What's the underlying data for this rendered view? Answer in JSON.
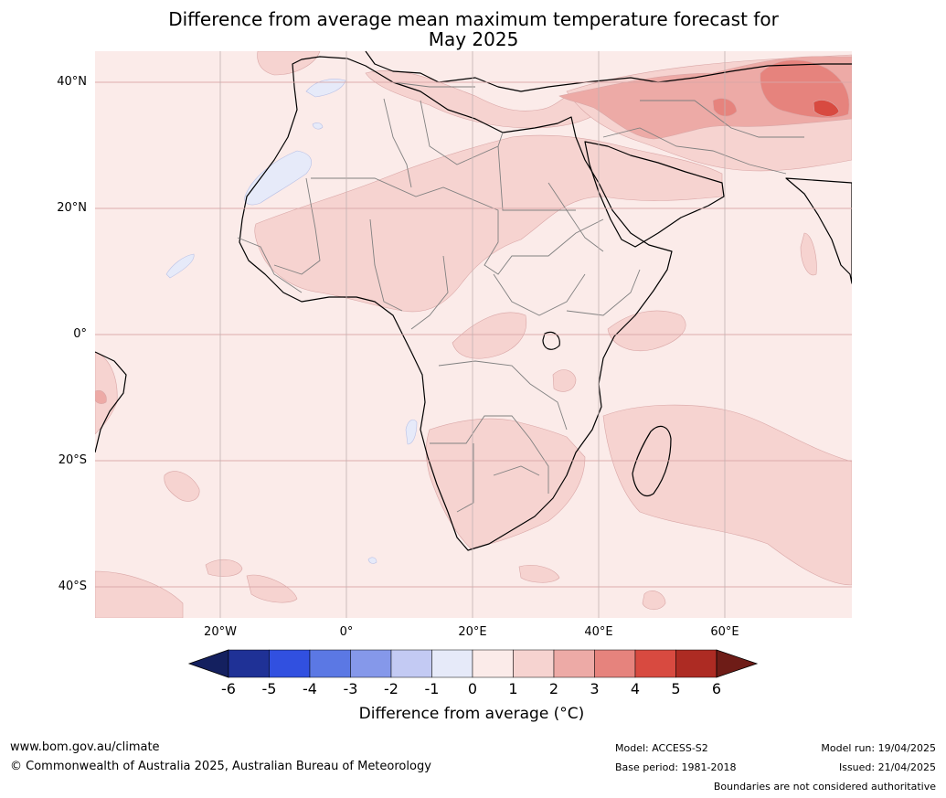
{
  "title_line1": "Difference from average mean maximum temperature forecast for",
  "title_line2": "May 2025",
  "lat_labels": [
    "40°N",
    "20°N",
    "0°",
    "20°S",
    "40°S"
  ],
  "lon_labels": [
    "20°W",
    "0°",
    "20°E",
    "40°E",
    "60°E"
  ],
  "colorbar": {
    "ticks": [
      "-6",
      "-5",
      "-4",
      "-3",
      "-2",
      "-1",
      "0",
      "1",
      "2",
      "3",
      "4",
      "5",
      "6"
    ],
    "label": "Difference from average (°C)",
    "colors": [
      "#1f3196",
      "#3150e0",
      "#5b78e4",
      "#8598ea",
      "#c3caf3",
      "#e6eaf9",
      "#fbebe9",
      "#f6d3d0",
      "#edaaa6",
      "#e6837d",
      "#d84a40",
      "#ad2b23"
    ],
    "under_color": "#14205f",
    "over_color": "#6e1c17"
  },
  "map_colors": {
    "base": "#fbebe9",
    "warm1": "#f6d3d0",
    "warm2": "#edaaa6",
    "warm3": "#e6837d",
    "warm4": "#d84a40",
    "cool1": "#e6eaf9",
    "gridline": "#d9a6a6"
  },
  "footer": {
    "url": "www.bom.gov.au/climate",
    "copyright": "© Commonwealth of Australia 2025, Australian Bureau of Meteorology",
    "model": "Model: ACCESS-S2",
    "base_period": "Base period: 1981-2018",
    "model_run": "Model run: 19/04/2025",
    "issued": "Issued: 21/04/2025",
    "disclaimer": "Boundaries are not considered authoritative"
  }
}
